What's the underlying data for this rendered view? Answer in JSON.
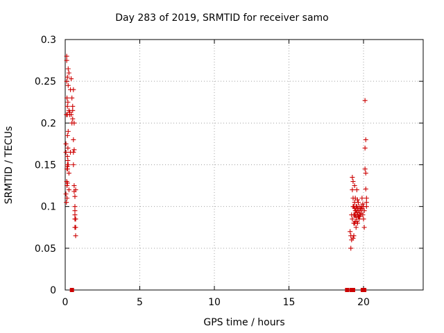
{
  "chart_data": {
    "type": "scatter",
    "title": "Day 283 of 2019, SRMTID for receiver samo",
    "xlabel": "GPS time / hours",
    "ylabel": "SRMTID / TECUs",
    "xlim": [
      0,
      24
    ],
    "ylim": [
      0,
      0.3
    ],
    "xticks": [
      0,
      5,
      10,
      15,
      20
    ],
    "yticks": [
      0,
      0.05,
      0.1,
      0.15,
      0.2,
      0.25,
      0.3
    ],
    "grid": true,
    "marker_color": "#cc0000",
    "series": [
      {
        "marker": "plus",
        "x": [
          0.05,
          0.05,
          0.05,
          0.08,
          0.08,
          0.1,
          0.1,
          0.1,
          0.1,
          0.12,
          0.12,
          0.12,
          0.12,
          0.15,
          0.15,
          0.15,
          0.15,
          0.15,
          0.15,
          0.15,
          0.15,
          0.15,
          0.18,
          0.18,
          0.18,
          0.18,
          0.2,
          0.2,
          0.2,
          0.2,
          0.25,
          0.25,
          0.25,
          0.25,
          0.3,
          0.3,
          0.35,
          0.35,
          0.4,
          0.4,
          0.45,
          0.45,
          0.5,
          0.5,
          0.5,
          0.55,
          0.55,
          0.55,
          0.55,
          0.6,
          0.6,
          0.6,
          0.6,
          0.65,
          0.65,
          0.65,
          0.65,
          0.65,
          0.65,
          0.7,
          0.7,
          0.7,
          0.7,
          19.1,
          19.15,
          19.15,
          19.2,
          19.2,
          19.25,
          19.25,
          19.25,
          19.3,
          19.3,
          19.3,
          19.3,
          19.35,
          19.35,
          19.35,
          19.35,
          19.4,
          19.4,
          19.4,
          19.4,
          19.4,
          19.45,
          19.45,
          19.45,
          19.45,
          19.5,
          19.5,
          19.5,
          19.5,
          19.55,
          19.55,
          19.55,
          19.55,
          19.6,
          19.6,
          19.6,
          19.6,
          19.65,
          19.65,
          19.65,
          19.7,
          19.7,
          19.7,
          19.75,
          19.75,
          19.8,
          19.8,
          19.85,
          19.85,
          19.9,
          19.9,
          19.95,
          19.95,
          20.0,
          20.0,
          20.05,
          20.05,
          20.1,
          20.1,
          20.1,
          20.15,
          20.15,
          20.15,
          20.2,
          20.2,
          20.2
        ],
        "y": [
          0.175,
          0.165,
          0.115,
          0.21,
          0.105,
          0.28,
          0.275,
          0.25,
          0.13,
          0.23,
          0.145,
          0.125,
          0.11,
          0.255,
          0.22,
          0.21,
          0.185,
          0.16,
          0.15,
          0.148,
          0.145,
          0.128,
          0.225,
          0.17,
          0.155,
          0.15,
          0.265,
          0.245,
          0.19,
          0.15,
          0.26,
          0.215,
          0.14,
          0.12,
          0.213,
          0.21,
          0.24,
          0.165,
          0.253,
          0.21,
          0.23,
          0.2,
          0.22,
          0.215,
          0.205,
          0.24,
          0.18,
          0.165,
          0.15,
          0.2,
          0.168,
          0.125,
          0.118,
          0.112,
          0.1,
          0.095,
          0.09,
          0.085,
          0.075,
          0.12,
          0.085,
          0.075,
          0.065,
          0.07,
          0.065,
          0.05,
          0.09,
          0.06,
          0.135,
          0.12,
          0.085,
          0.13,
          0.11,
          0.1,
          0.062,
          0.1,
          0.09,
          0.08,
          0.065,
          0.125,
          0.105,
          0.098,
          0.09,
          0.08,
          0.11,
          0.095,
          0.09,
          0.082,
          0.1,
          0.095,
          0.087,
          0.075,
          0.12,
          0.1,
          0.093,
          0.082,
          0.108,
          0.098,
          0.09,
          0.08,
          0.105,
          0.095,
          0.088,
          0.1,
          0.09,
          0.085,
          0.095,
          0.088,
          0.098,
          0.09,
          0.1,
          0.092,
          0.11,
          0.097,
          0.103,
          0.09,
          0.1,
          0.085,
          0.095,
          0.075,
          0.227,
          0.17,
          0.145,
          0.18,
          0.14,
          0.121,
          0.11,
          0.105,
          0.1
        ]
      },
      {
        "marker": "square",
        "x": [
          0.45,
          18.9,
          19.2,
          19.25,
          19.3,
          19.95,
          20.0,
          20.05
        ],
        "y": [
          0,
          0,
          0,
          0,
          0,
          0,
          0,
          0
        ]
      }
    ]
  }
}
